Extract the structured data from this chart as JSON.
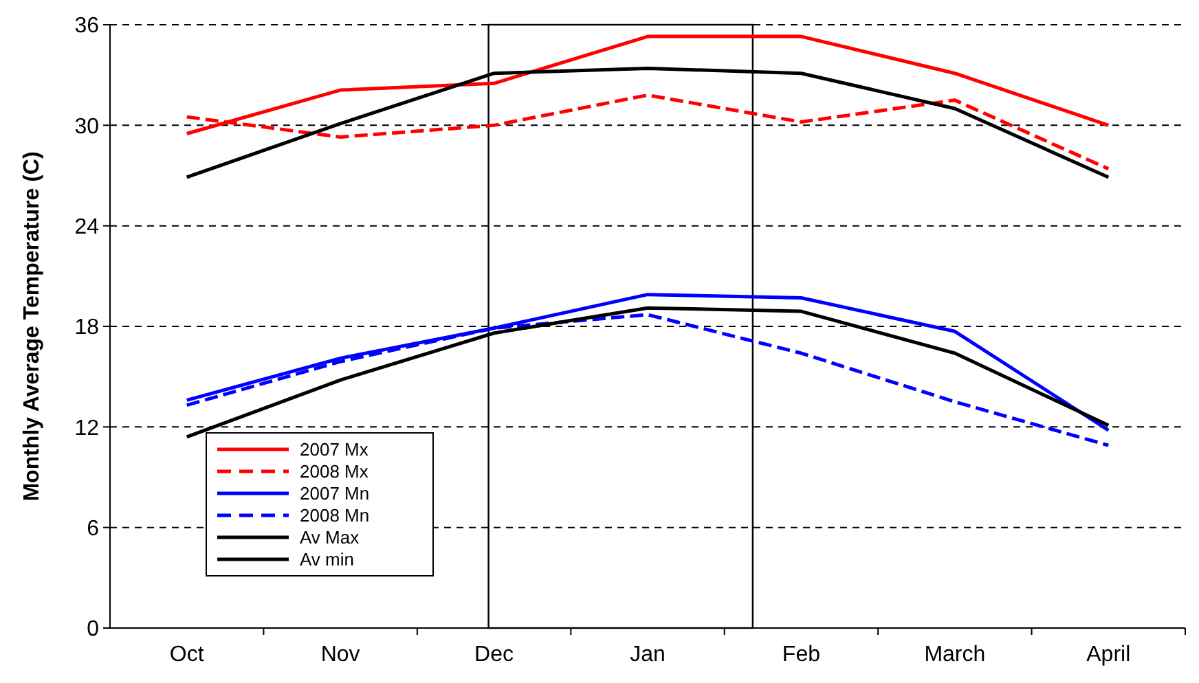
{
  "chart_data": {
    "type": "line",
    "ylabel": "Monthly Average Temperature (C)",
    "categories": [
      "Oct",
      "Nov",
      "Dec",
      "Jan",
      "Feb",
      "March",
      "April"
    ],
    "ylim": [
      0,
      36
    ],
    "yticks": [
      0,
      6,
      12,
      18,
      24,
      30,
      36
    ],
    "grid": "y",
    "legend": "bottom left",
    "series": [
      {
        "name": "2007 Mx",
        "color": "#ff0000",
        "line_style": "solid",
        "values": [
          29.5,
          32.1,
          32.5,
          35.3,
          35.3,
          33.1,
          30.0
        ]
      },
      {
        "name": "2008 Mx",
        "color": "#ff0000",
        "line_style": "dashed",
        "values": [
          30.5,
          29.3,
          30.0,
          31.8,
          30.2,
          31.5,
          27.4
        ]
      },
      {
        "name": "2007 Mn",
        "color": "#0000ff",
        "line_style": "solid",
        "values": [
          13.6,
          16.1,
          17.9,
          19.9,
          19.7,
          17.7,
          11.8
        ]
      },
      {
        "name": "2008 Mn",
        "color": "#0000ff",
        "line_style": "dashed",
        "values": [
          13.3,
          15.9,
          17.9,
          18.7,
          16.4,
          13.5,
          10.9
        ]
      },
      {
        "name": "Av Max",
        "color": "#000000",
        "line_style": "solid",
        "values": [
          26.9,
          30.1,
          33.1,
          33.4,
          33.1,
          31.0,
          26.9
        ]
      },
      {
        "name": "Av min",
        "color": "#000000",
        "line_style": "solid",
        "values": [
          11.4,
          14.8,
          17.6,
          19.1,
          18.9,
          16.4,
          12.1
        ]
      }
    ]
  }
}
